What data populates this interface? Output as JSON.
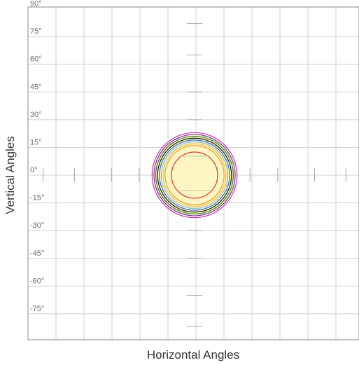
{
  "chart_data": {
    "type": "polar-isocandela",
    "xlabel": "Horizontal Angles",
    "ylabel": "Vertical Angles",
    "y_tick_labels": [
      "90°",
      "75°",
      "60°",
      "45°",
      "30°",
      "15°",
      "0°",
      "-15°",
      "-30°",
      "-45°",
      "-60°",
      "-75°"
    ],
    "y_tick_values": [
      90,
      75,
      60,
      45,
      30,
      15,
      0,
      -15,
      -30,
      -45,
      -60,
      -75
    ],
    "ylim": [
      -90,
      90
    ],
    "xlim": [
      -90,
      90
    ],
    "grid": true,
    "fill_disc": {
      "radius": 22,
      "color": "#fdf6c3"
    },
    "contours": [
      {
        "radius": 23.0,
        "color": "#cc33aa"
      },
      {
        "radius": 22.0,
        "color": "#7a2fa8"
      },
      {
        "radius": 21.0,
        "color": "#2e7d32"
      },
      {
        "radius": 20.0,
        "color": "#1a1a1a"
      },
      {
        "radius": 19.0,
        "color": "#3366cc"
      },
      {
        "radius": 18.0,
        "color": "#88bbe8"
      },
      {
        "radius": 17.0,
        "color": "#f0c24a"
      },
      {
        "radius": 16.0,
        "color": "#e8a030"
      },
      {
        "radius": 12.5,
        "color": "#d83a3a"
      }
    ],
    "colors": {
      "grid": "#d0d0d0",
      "frame": "#8a8a8a",
      "hatch": "#aaaaaa"
    }
  }
}
